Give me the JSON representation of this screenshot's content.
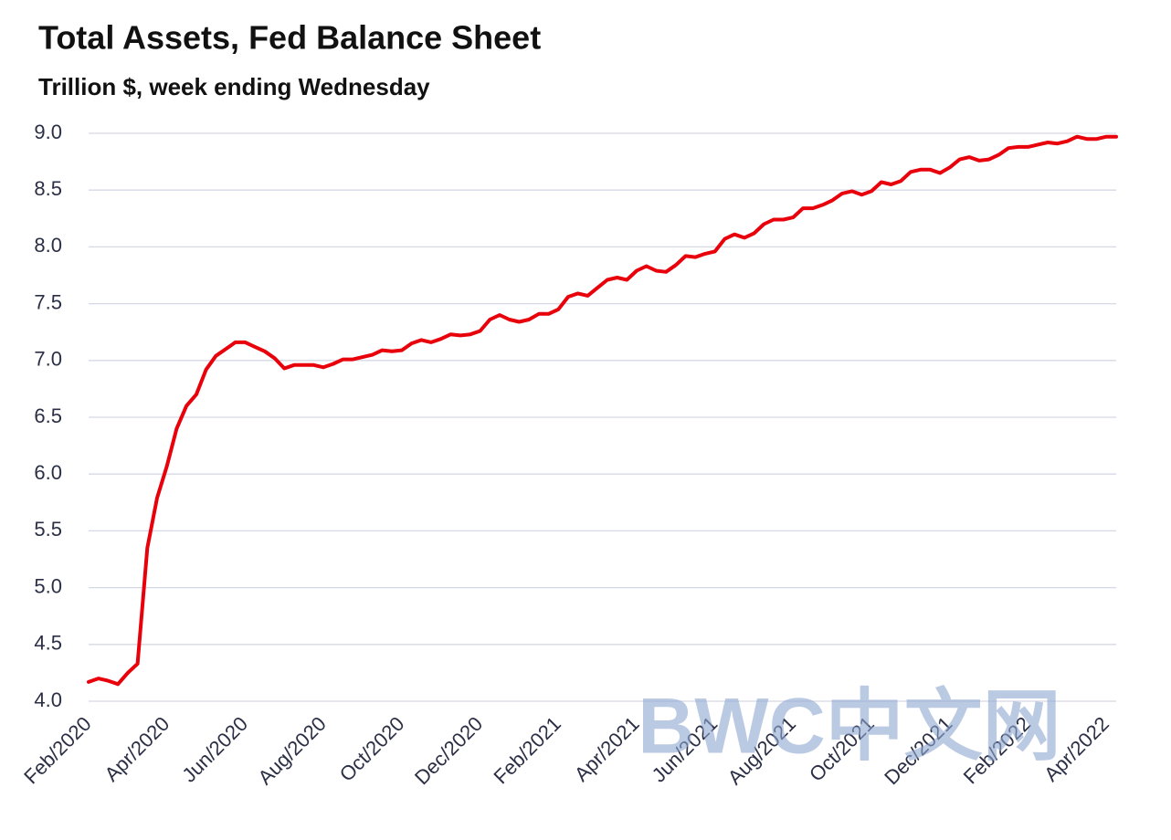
{
  "chart_data": {
    "type": "line",
    "title": "Total Assets, Fed Balance Sheet",
    "subtitle": "Trillion $, week ending Wednesday",
    "watermark": "BWC中文网",
    "categories": [
      "Feb/2020",
      null,
      null,
      null,
      null,
      null,
      null,
      null,
      "Apr/2020",
      null,
      null,
      null,
      null,
      null,
      null,
      null,
      "Jun/2020",
      null,
      null,
      null,
      null,
      null,
      null,
      null,
      "Aug/2020",
      null,
      null,
      null,
      null,
      null,
      null,
      null,
      "Oct/2020",
      null,
      null,
      null,
      null,
      null,
      null,
      null,
      "Dec/2020",
      null,
      null,
      null,
      null,
      null,
      null,
      null,
      "Feb/2021",
      null,
      null,
      null,
      null,
      null,
      null,
      null,
      "Apr/2021",
      null,
      null,
      null,
      null,
      null,
      null,
      null,
      "Jun/2021",
      null,
      null,
      null,
      null,
      null,
      null,
      null,
      "Aug/2021",
      null,
      null,
      null,
      null,
      null,
      null,
      null,
      "Oct/2021",
      null,
      null,
      null,
      null,
      null,
      null,
      null,
      "Dec/2021",
      null,
      null,
      null,
      null,
      null,
      null,
      null,
      "Feb/2022",
      null,
      null,
      null,
      null,
      null,
      null,
      null,
      "Apr/2022",
      null
    ],
    "values": [
      4.17,
      4.2,
      4.18,
      4.15,
      4.25,
      4.33,
      5.35,
      5.79,
      6.07,
      6.4,
      6.6,
      6.7,
      6.92,
      7.04,
      7.1,
      7.16,
      7.16,
      7.12,
      7.08,
      7.02,
      6.93,
      6.96,
      6.96,
      6.96,
      6.94,
      6.97,
      7.01,
      7.01,
      7.03,
      7.05,
      7.09,
      7.08,
      7.09,
      7.15,
      7.18,
      7.16,
      7.19,
      7.23,
      7.22,
      7.23,
      7.26,
      7.36,
      7.4,
      7.36,
      7.34,
      7.36,
      7.41,
      7.41,
      7.45,
      7.56,
      7.59,
      7.57,
      7.64,
      7.71,
      7.73,
      7.71,
      7.79,
      7.83,
      7.79,
      7.78,
      7.84,
      7.92,
      7.91,
      7.94,
      7.96,
      8.07,
      8.11,
      8.08,
      8.12,
      8.2,
      8.24,
      8.24,
      8.26,
      8.34,
      8.34,
      8.37,
      8.41,
      8.47,
      8.49,
      8.46,
      8.49,
      8.57,
      8.55,
      8.58,
      8.66,
      8.68,
      8.68,
      8.65,
      8.7,
      8.77,
      8.79,
      8.76,
      8.77,
      8.81,
      8.87,
      8.88,
      8.88,
      8.9,
      8.92,
      8.91,
      8.93,
      8.97,
      8.95,
      8.95,
      8.97,
      8.97
    ],
    "color": "#e8000b",
    "ylim": [
      4,
      9
    ],
    "yticks": [
      {
        "value": 4,
        "label": "4.0"
      },
      4.5,
      {
        "value": 5,
        "label": "5.0"
      },
      5.5,
      {
        "value": 6,
        "label": "6.0"
      },
      6.5,
      {
        "value": 7,
        "label": "7.0"
      },
      7.5,
      {
        "value": 8,
        "label": "8.0"
      },
      8.5,
      {
        "value": 9,
        "label": "9.0"
      }
    ],
    "grid": true
  }
}
